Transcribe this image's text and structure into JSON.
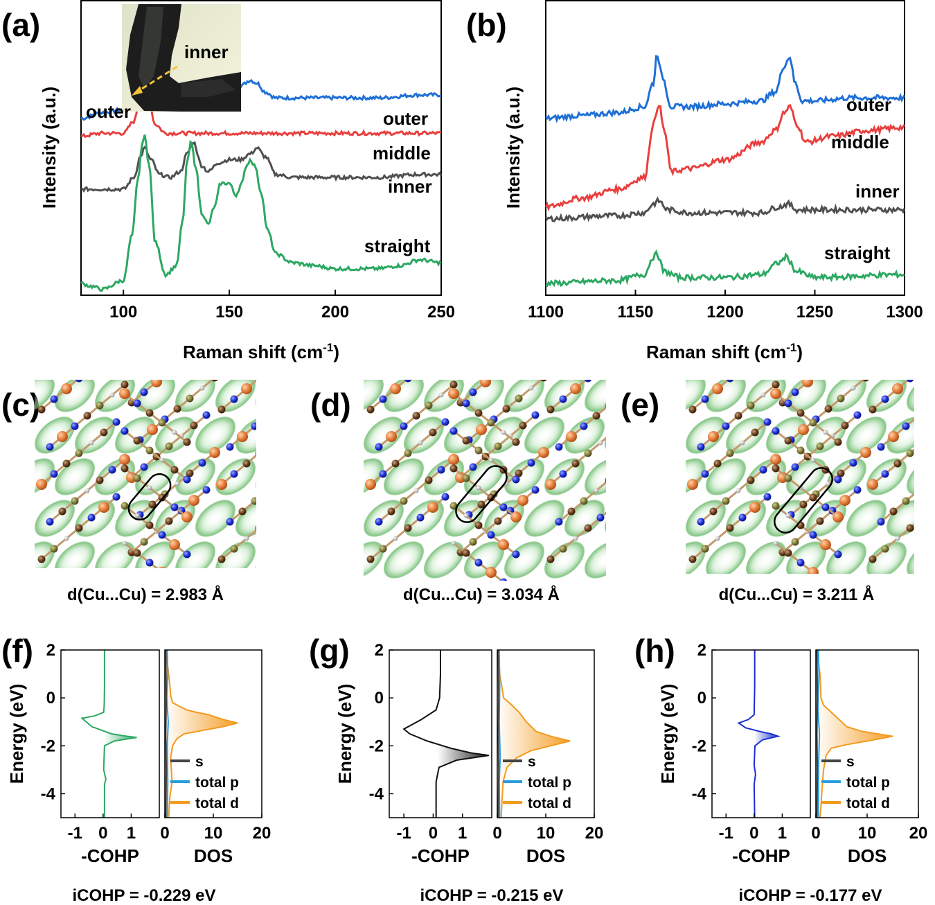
{
  "panel_labels": [
    "(a)",
    "(b)",
    "(c)",
    "(d)",
    "(e)",
    "(f)",
    "(g)",
    "(h)"
  ],
  "raman": {
    "xlabel_main": "Raman shift (cm",
    "xlabel_sup": "-1",
    "xlabel_end": ")",
    "ylabel": "Intensity (a.u.)",
    "colors": {
      "outer": "#1f6fd6",
      "middle": "#e8403e",
      "inner": "#505050",
      "straight": "#2ca862"
    }
  },
  "inset": {
    "inner_label": "inner",
    "outer_label": "outer"
  },
  "structures": [
    {
      "caption": "d(Cu...Cu) = 2.983 Å"
    },
    {
      "caption": "d(Cu...Cu) = 3.034 Å"
    },
    {
      "caption": "d(Cu...Cu) = 3.211 Å"
    }
  ],
  "cohp_panels": [
    {
      "icohp": "iCOHP = -0.229 eV",
      "cohp_color": "#2ca862"
    },
    {
      "icohp": "iCOHP = -0.215 eV",
      "cohp_color": "#111111"
    },
    {
      "icohp": "iCOHP = -0.177 eV",
      "cohp_color": "#1a2fd0"
    }
  ],
  "dos": {
    "ylabel": "Energy (eV)",
    "cohp_xlabel": "-COHP",
    "dos_xlabel": "DOS",
    "legend": [
      "s",
      "total p",
      "total d"
    ],
    "legend_colors": [
      "#444444",
      "#2a9de0",
      "#f39a1e"
    ]
  },
  "chart_data": [
    {
      "type": "line",
      "panel": "(a)",
      "xlabel": "Raman shift (cm-1)",
      "ylabel": "Intensity (a.u.)",
      "xlim": [
        80,
        250
      ],
      "xticks": [
        100,
        150,
        200,
        250
      ],
      "series": [
        {
          "name": "outer",
          "x": [
            80,
            90,
            100,
            105,
            108,
            110,
            113,
            118,
            125,
            130,
            133,
            136,
            140,
            145,
            150,
            155,
            160,
            163,
            167,
            172,
            180,
            200,
            220,
            240,
            250
          ],
          "y": [
            0.6,
            0.62,
            0.63,
            0.66,
            0.7,
            0.72,
            0.68,
            0.64,
            0.64,
            0.68,
            0.77,
            0.7,
            0.66,
            0.67,
            0.68,
            0.71,
            0.73,
            0.72,
            0.69,
            0.67,
            0.67,
            0.67,
            0.67,
            0.68,
            0.68
          ]
        },
        {
          "name": "middle",
          "x": [
            80,
            90,
            100,
            105,
            108,
            110,
            112,
            115,
            120,
            130,
            140,
            150,
            160,
            170,
            180,
            200,
            220,
            240,
            250
          ],
          "y": [
            0.54,
            0.55,
            0.55,
            0.59,
            0.68,
            0.71,
            0.66,
            0.58,
            0.55,
            0.55,
            0.55,
            0.55,
            0.55,
            0.55,
            0.55,
            0.55,
            0.55,
            0.55,
            0.55
          ]
        },
        {
          "name": "inner",
          "x": [
            80,
            90,
            100,
            105,
            108,
            110,
            113,
            117,
            122,
            127,
            130,
            133,
            137,
            140,
            145,
            150,
            155,
            160,
            163,
            167,
            172,
            180,
            200,
            220,
            240,
            250
          ],
          "y": [
            0.36,
            0.36,
            0.36,
            0.4,
            0.47,
            0.5,
            0.46,
            0.41,
            0.4,
            0.42,
            0.48,
            0.52,
            0.44,
            0.42,
            0.45,
            0.46,
            0.46,
            0.48,
            0.5,
            0.47,
            0.41,
            0.4,
            0.4,
            0.4,
            0.41,
            0.41
          ]
        },
        {
          "name": "straight",
          "x": [
            80,
            85,
            90,
            100,
            104,
            107,
            109,
            110,
            112,
            115,
            120,
            125,
            128,
            130,
            132,
            134,
            137,
            140,
            143,
            146,
            150,
            153,
            156,
            158,
            160,
            162,
            165,
            168,
            172,
            180,
            190,
            200,
            210,
            220,
            230,
            240,
            250
          ],
          "y": [
            0.04,
            0.03,
            0.02,
            0.05,
            0.2,
            0.4,
            0.52,
            0.54,
            0.45,
            0.18,
            0.07,
            0.1,
            0.25,
            0.45,
            0.52,
            0.44,
            0.28,
            0.24,
            0.3,
            0.38,
            0.38,
            0.34,
            0.38,
            0.44,
            0.46,
            0.44,
            0.35,
            0.22,
            0.14,
            0.11,
            0.1,
            0.09,
            0.09,
            0.09,
            0.1,
            0.12,
            0.11
          ]
        }
      ],
      "curve_labels": [
        "outer",
        "middle",
        "inner",
        "straight"
      ]
    },
    {
      "type": "line",
      "panel": "(b)",
      "xlabel": "Raman shift (cm-1)",
      "ylabel": "Intensity (a.u.)",
      "xlim": [
        1100,
        1300
      ],
      "xticks": [
        1100,
        1150,
        1200,
        1250,
        1300
      ],
      "series": [
        {
          "name": "outer",
          "x": [
            1100,
            1120,
            1140,
            1155,
            1160,
            1162,
            1165,
            1170,
            1180,
            1200,
            1220,
            1228,
            1233,
            1236,
            1239,
            1243,
            1250,
            1270,
            1300
          ],
          "y": [
            0.6,
            0.61,
            0.62,
            0.64,
            0.72,
            0.82,
            0.74,
            0.64,
            0.64,
            0.65,
            0.66,
            0.69,
            0.78,
            0.81,
            0.72,
            0.66,
            0.66,
            0.67,
            0.67
          ]
        },
        {
          "name": "middle",
          "x": [
            1100,
            1120,
            1140,
            1155,
            1160,
            1163,
            1166,
            1170,
            1180,
            1200,
            1220,
            1228,
            1233,
            1236,
            1240,
            1245,
            1260,
            1280,
            1300
          ],
          "y": [
            0.3,
            0.33,
            0.36,
            0.4,
            0.58,
            0.65,
            0.56,
            0.42,
            0.43,
            0.46,
            0.52,
            0.56,
            0.62,
            0.64,
            0.58,
            0.52,
            0.54,
            0.56,
            0.57
          ]
        },
        {
          "name": "inner",
          "x": [
            1100,
            1140,
            1155,
            1160,
            1163,
            1168,
            1180,
            1220,
            1230,
            1235,
            1240,
            1260,
            1300
          ],
          "y": [
            0.26,
            0.27,
            0.28,
            0.31,
            0.32,
            0.29,
            0.28,
            0.28,
            0.3,
            0.31,
            0.29,
            0.29,
            0.29
          ]
        },
        {
          "name": "straight",
          "x": [
            1100,
            1140,
            1155,
            1160,
            1162,
            1166,
            1175,
            1200,
            1220,
            1230,
            1234,
            1240,
            1250,
            1300
          ],
          "y": [
            0.04,
            0.05,
            0.07,
            0.13,
            0.14,
            0.08,
            0.06,
            0.06,
            0.07,
            0.11,
            0.13,
            0.08,
            0.06,
            0.07
          ]
        }
      ],
      "curve_labels": [
        "outer",
        "middle",
        "inner",
        "straight"
      ]
    },
    {
      "type": "line",
      "panel": "(f)",
      "ylabel": "Energy (eV)",
      "cohp": {
        "xlim": [
          -1.5,
          2
        ],
        "xticks": [
          -1,
          0,
          1
        ],
        "ylim": [
          -5,
          2
        ],
        "yticks": [
          2,
          0,
          -2,
          -4
        ],
        "x": [
          0.05,
          0.05,
          0.04,
          0.02,
          -0.3,
          -0.75,
          -0.4,
          0.3,
          0.85,
          1.2,
          0.4,
          0.05,
          0.02,
          0.1,
          0.05,
          0.05
        ],
        "y": [
          2.0,
          0.5,
          -0.3,
          -0.6,
          -0.75,
          -0.85,
          -1.2,
          -1.5,
          -1.6,
          -1.65,
          -1.8,
          -2.0,
          -3.0,
          -3.4,
          -3.6,
          -5.0
        ]
      },
      "dos": {
        "xlim": [
          0,
          20
        ],
        "xticks": [
          0,
          10,
          20
        ],
        "d": {
          "x": [
            0.3,
            0.5,
            1.0,
            1.2,
            1.6,
            3.0,
            4.5,
            6.5,
            9.0,
            12.0,
            15.0,
            12.0,
            8.0,
            4.0,
            2.5,
            1.6,
            1.2,
            1.5,
            1.0,
            0.8
          ],
          "y": [
            2.0,
            1.5,
            0.6,
            0.1,
            -0.2,
            -0.35,
            -0.5,
            -0.6,
            -0.7,
            -0.9,
            -1.05,
            -1.2,
            -1.35,
            -1.5,
            -1.7,
            -2.0,
            -2.5,
            -3.5,
            -4.2,
            -5.0
          ]
        },
        "p": {
          "x": [
            0.5,
            0.6,
            0.4,
            0.7,
            0.5,
            0.6,
            0.5
          ],
          "y": [
            2.0,
            1.0,
            0.0,
            -1.0,
            -2.0,
            -3.5,
            -5.0
          ]
        },
        "s": {
          "x": [
            0.2,
            0.3,
            0.2,
            0.3,
            0.2
          ],
          "y": [
            2.0,
            0.0,
            -1.5,
            -3.0,
            -5.0
          ]
        }
      },
      "icohp": "iCOHP = -0.229 eV"
    },
    {
      "type": "line",
      "panel": "(g)",
      "ylabel": "Energy (eV)",
      "cohp": {
        "xlim": [
          -1.5,
          2
        ],
        "xticks": [
          -1,
          0,
          1
        ],
        "ylim": [
          -5,
          2
        ],
        "yticks": [
          2,
          0,
          -2,
          -4
        ],
        "x": [
          0.25,
          0.25,
          0.22,
          0.1,
          -0.4,
          -1.0,
          -0.8,
          -0.2,
          0.6,
          1.3,
          1.9,
          0.8,
          0.2,
          0.1,
          0.1,
          0.1
        ],
        "y": [
          2.0,
          1.0,
          0.0,
          -0.5,
          -0.9,
          -1.3,
          -1.5,
          -1.8,
          -2.1,
          -2.3,
          -2.4,
          -2.6,
          -2.9,
          -3.5,
          -4.2,
          -5.0
        ]
      },
      "dos": {
        "xlim": [
          0,
          20
        ],
        "xticks": [
          0,
          10,
          20
        ],
        "d": {
          "x": [
            0.3,
            0.5,
            1.0,
            1.3,
            3.0,
            4.5,
            6.0,
            8.0,
            11.0,
            15.0,
            11.0,
            7.0,
            4.0,
            2.0,
            1.2,
            1.0,
            0.8
          ],
          "y": [
            2.0,
            1.0,
            0.4,
            0.0,
            -0.3,
            -0.6,
            -1.0,
            -1.4,
            -1.6,
            -1.8,
            -2.0,
            -2.2,
            -2.5,
            -2.9,
            -3.5,
            -4.2,
            -5.0
          ]
        },
        "p": {
          "x": [
            0.4,
            0.5,
            0.4,
            0.6,
            0.4,
            0.5
          ],
          "y": [
            2.0,
            0.5,
            -1.0,
            -2.5,
            -3.5,
            -5.0
          ]
        },
        "s": {
          "x": [
            0.2,
            0.3,
            0.2,
            0.3,
            0.2
          ],
          "y": [
            2.0,
            0.0,
            -1.5,
            -3.0,
            -5.0
          ]
        }
      },
      "icohp": "iCOHP = -0.215 eV"
    },
    {
      "type": "line",
      "panel": "(h)",
      "ylabel": "Energy (eV)",
      "cohp": {
        "xlim": [
          -1.5,
          2
        ],
        "xticks": [
          -1,
          0,
          1
        ],
        "ylim": [
          -5,
          2
        ],
        "yticks": [
          2,
          0,
          -2,
          -4
        ],
        "x": [
          0.02,
          0.02,
          0.0,
          -0.2,
          -0.55,
          -0.3,
          0.2,
          0.6,
          0.85,
          0.3,
          0.03,
          0.0,
          0.05,
          0.0,
          0.02
        ],
        "y": [
          2.0,
          0.5,
          -0.7,
          -0.9,
          -1.05,
          -1.25,
          -1.4,
          -1.5,
          -1.6,
          -1.75,
          -2.0,
          -2.8,
          -3.2,
          -3.6,
          -5.0
        ]
      },
      "dos": {
        "xlim": [
          0,
          20
        ],
        "xticks": [
          0,
          10,
          20
        ],
        "d": {
          "x": [
            0.3,
            0.5,
            0.8,
            1.0,
            1.5,
            3.0,
            4.5,
            6.0,
            9.0,
            15.0,
            10.0,
            6.0,
            3.0,
            2.0,
            1.5,
            1.2,
            1.0,
            0.8
          ],
          "y": [
            2.0,
            1.5,
            1.0,
            0.0,
            -0.3,
            -0.6,
            -0.9,
            -1.2,
            -1.4,
            -1.6,
            -1.8,
            -1.95,
            -2.1,
            -2.4,
            -3.0,
            -3.8,
            -4.5,
            -5.0
          ]
        },
        "p": {
          "x": [
            0.5,
            0.6,
            0.4,
            0.7,
            0.5,
            0.5
          ],
          "y": [
            2.0,
            1.0,
            -0.5,
            -1.5,
            -3.0,
            -5.0
          ]
        },
        "s": {
          "x": [
            0.2,
            0.3,
            0.2,
            0.3,
            0.2
          ],
          "y": [
            2.0,
            0.0,
            -1.5,
            -3.0,
            -5.0
          ]
        }
      },
      "icohp": "iCOHP = -0.177 eV"
    }
  ]
}
